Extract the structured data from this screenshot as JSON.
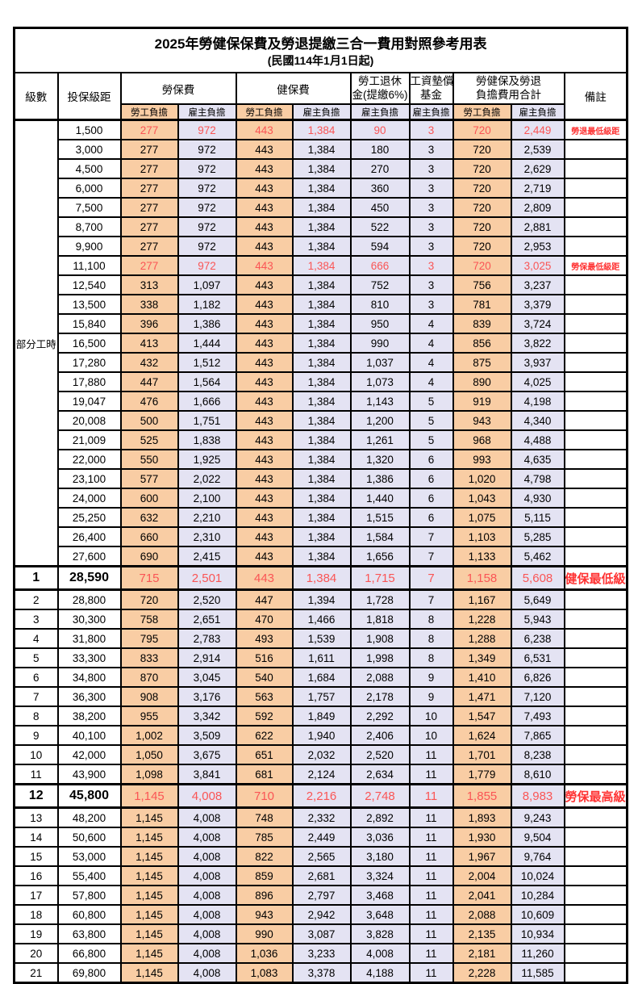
{
  "title": "2025年勞健保保費及勞退提繳三合一費用對照參考用表",
  "subtitle": "(民國114年1月1日起)",
  "header": {
    "level": "級數",
    "bracket": "投保級距",
    "labor_insurance": "勞保費",
    "health_insurance": "健保費",
    "pension_line1": "勞工退休",
    "pension_line2": "金(提繳6%)",
    "wage_fund_line1": "工資墊償",
    "wage_fund_line2": "基金",
    "total_line1": "勞健保及勞退",
    "total_line2": "負擔費用合計",
    "remark": "備註",
    "employee": "勞工負擔",
    "employer": "雇主負擔"
  },
  "part_time_label": "部分工時",
  "colors": {
    "employee_column_fill": "#F9CDA4",
    "employer_column_fill": "#E4E3F3",
    "highlight_number_red": "#FA5555",
    "remark_red": "#FF3333",
    "border_black": "#000000"
  },
  "rows": [
    {
      "level": "",
      "bracket": "1,500",
      "li_emp": "277",
      "li_er": "972",
      "hi_emp": "443",
      "hi_er": "1,384",
      "pen_er": "90",
      "fund_er": "3",
      "tot_emp": "720",
      "tot_er": "2,449",
      "remark": "勞退最低級距",
      "red": true,
      "big": false
    },
    {
      "level": "",
      "bracket": "3,000",
      "li_emp": "277",
      "li_er": "972",
      "hi_emp": "443",
      "hi_er": "1,384",
      "pen_er": "180",
      "fund_er": "3",
      "tot_emp": "720",
      "tot_er": "2,539",
      "remark": "",
      "red": false,
      "big": false
    },
    {
      "level": "",
      "bracket": "4,500",
      "li_emp": "277",
      "li_er": "972",
      "hi_emp": "443",
      "hi_er": "1,384",
      "pen_er": "270",
      "fund_er": "3",
      "tot_emp": "720",
      "tot_er": "2,629",
      "remark": "",
      "red": false,
      "big": false
    },
    {
      "level": "",
      "bracket": "6,000",
      "li_emp": "277",
      "li_er": "972",
      "hi_emp": "443",
      "hi_er": "1,384",
      "pen_er": "360",
      "fund_er": "3",
      "tot_emp": "720",
      "tot_er": "2,719",
      "remark": "",
      "red": false,
      "big": false
    },
    {
      "level": "",
      "bracket": "7,500",
      "li_emp": "277",
      "li_er": "972",
      "hi_emp": "443",
      "hi_er": "1,384",
      "pen_er": "450",
      "fund_er": "3",
      "tot_emp": "720",
      "tot_er": "2,809",
      "remark": "",
      "red": false,
      "big": false
    },
    {
      "level": "",
      "bracket": "8,700",
      "li_emp": "277",
      "li_er": "972",
      "hi_emp": "443",
      "hi_er": "1,384",
      "pen_er": "522",
      "fund_er": "3",
      "tot_emp": "720",
      "tot_er": "2,881",
      "remark": "",
      "red": false,
      "big": false
    },
    {
      "level": "",
      "bracket": "9,900",
      "li_emp": "277",
      "li_er": "972",
      "hi_emp": "443",
      "hi_er": "1,384",
      "pen_er": "594",
      "fund_er": "3",
      "tot_emp": "720",
      "tot_er": "2,953",
      "remark": "",
      "red": false,
      "big": false
    },
    {
      "level": "",
      "bracket": "11,100",
      "li_emp": "277",
      "li_er": "972",
      "hi_emp": "443",
      "hi_er": "1,384",
      "pen_er": "666",
      "fund_er": "3",
      "tot_emp": "720",
      "tot_er": "3,025",
      "remark": "勞保最低級距",
      "red": true,
      "big": false
    },
    {
      "level": "",
      "bracket": "12,540",
      "li_emp": "313",
      "li_er": "1,097",
      "hi_emp": "443",
      "hi_er": "1,384",
      "pen_er": "752",
      "fund_er": "3",
      "tot_emp": "756",
      "tot_er": "3,237",
      "remark": "",
      "red": false,
      "big": false
    },
    {
      "level": "",
      "bracket": "13,500",
      "li_emp": "338",
      "li_er": "1,182",
      "hi_emp": "443",
      "hi_er": "1,384",
      "pen_er": "810",
      "fund_er": "3",
      "tot_emp": "781",
      "tot_er": "3,379",
      "remark": "",
      "red": false,
      "big": false
    },
    {
      "level": "",
      "bracket": "15,840",
      "li_emp": "396",
      "li_er": "1,386",
      "hi_emp": "443",
      "hi_er": "1,384",
      "pen_er": "950",
      "fund_er": "4",
      "tot_emp": "839",
      "tot_er": "3,724",
      "remark": "",
      "red": false,
      "big": false
    },
    {
      "level": "",
      "bracket": "16,500",
      "li_emp": "413",
      "li_er": "1,444",
      "hi_emp": "443",
      "hi_er": "1,384",
      "pen_er": "990",
      "fund_er": "4",
      "tot_emp": "856",
      "tot_er": "3,822",
      "remark": "",
      "red": false,
      "big": false
    },
    {
      "level": "",
      "bracket": "17,280",
      "li_emp": "432",
      "li_er": "1,512",
      "hi_emp": "443",
      "hi_er": "1,384",
      "pen_er": "1,037",
      "fund_er": "4",
      "tot_emp": "875",
      "tot_er": "3,937",
      "remark": "",
      "red": false,
      "big": false
    },
    {
      "level": "",
      "bracket": "17,880",
      "li_emp": "447",
      "li_er": "1,564",
      "hi_emp": "443",
      "hi_er": "1,384",
      "pen_er": "1,073",
      "fund_er": "4",
      "tot_emp": "890",
      "tot_er": "4,025",
      "remark": "",
      "red": false,
      "big": false
    },
    {
      "level": "",
      "bracket": "19,047",
      "li_emp": "476",
      "li_er": "1,666",
      "hi_emp": "443",
      "hi_er": "1,384",
      "pen_er": "1,143",
      "fund_er": "5",
      "tot_emp": "919",
      "tot_er": "4,198",
      "remark": "",
      "red": false,
      "big": false
    },
    {
      "level": "",
      "bracket": "20,008",
      "li_emp": "500",
      "li_er": "1,751",
      "hi_emp": "443",
      "hi_er": "1,384",
      "pen_er": "1,200",
      "fund_er": "5",
      "tot_emp": "943",
      "tot_er": "4,340",
      "remark": "",
      "red": false,
      "big": false
    },
    {
      "level": "",
      "bracket": "21,009",
      "li_emp": "525",
      "li_er": "1,838",
      "hi_emp": "443",
      "hi_er": "1,384",
      "pen_er": "1,261",
      "fund_er": "5",
      "tot_emp": "968",
      "tot_er": "4,488",
      "remark": "",
      "red": false,
      "big": false
    },
    {
      "level": "",
      "bracket": "22,000",
      "li_emp": "550",
      "li_er": "1,925",
      "hi_emp": "443",
      "hi_er": "1,384",
      "pen_er": "1,320",
      "fund_er": "6",
      "tot_emp": "993",
      "tot_er": "4,635",
      "remark": "",
      "red": false,
      "big": false
    },
    {
      "level": "",
      "bracket": "23,100",
      "li_emp": "577",
      "li_er": "2,022",
      "hi_emp": "443",
      "hi_er": "1,384",
      "pen_er": "1,386",
      "fund_er": "6",
      "tot_emp": "1,020",
      "tot_er": "4,798",
      "remark": "",
      "red": false,
      "big": false
    },
    {
      "level": "",
      "bracket": "24,000",
      "li_emp": "600",
      "li_er": "2,100",
      "hi_emp": "443",
      "hi_er": "1,384",
      "pen_er": "1,440",
      "fund_er": "6",
      "tot_emp": "1,043",
      "tot_er": "4,930",
      "remark": "",
      "red": false,
      "big": false
    },
    {
      "level": "",
      "bracket": "25,250",
      "li_emp": "632",
      "li_er": "2,210",
      "hi_emp": "443",
      "hi_er": "1,384",
      "pen_er": "1,515",
      "fund_er": "6",
      "tot_emp": "1,075",
      "tot_er": "5,115",
      "remark": "",
      "red": false,
      "big": false
    },
    {
      "level": "",
      "bracket": "26,400",
      "li_emp": "660",
      "li_er": "2,310",
      "hi_emp": "443",
      "hi_er": "1,384",
      "pen_er": "1,584",
      "fund_er": "7",
      "tot_emp": "1,103",
      "tot_er": "5,285",
      "remark": "",
      "red": false,
      "big": false
    },
    {
      "level": "",
      "bracket": "27,600",
      "li_emp": "690",
      "li_er": "2,415",
      "hi_emp": "443",
      "hi_er": "1,384",
      "pen_er": "1,656",
      "fund_er": "7",
      "tot_emp": "1,133",
      "tot_er": "5,462",
      "remark": "",
      "red": false,
      "big": false
    },
    {
      "level": "1",
      "bracket": "28,590",
      "li_emp": "715",
      "li_er": "2,501",
      "hi_emp": "443",
      "hi_er": "1,384",
      "pen_er": "1,715",
      "fund_er": "7",
      "tot_emp": "1,158",
      "tot_er": "5,608",
      "remark": "健保最低級距",
      "red": true,
      "big": true
    },
    {
      "level": "2",
      "bracket": "28,800",
      "li_emp": "720",
      "li_er": "2,520",
      "hi_emp": "447",
      "hi_er": "1,394",
      "pen_er": "1,728",
      "fund_er": "7",
      "tot_emp": "1,167",
      "tot_er": "5,649",
      "remark": "",
      "red": false,
      "big": false
    },
    {
      "level": "3",
      "bracket": "30,300",
      "li_emp": "758",
      "li_er": "2,651",
      "hi_emp": "470",
      "hi_er": "1,466",
      "pen_er": "1,818",
      "fund_er": "8",
      "tot_emp": "1,228",
      "tot_er": "5,943",
      "remark": "",
      "red": false,
      "big": false
    },
    {
      "level": "4",
      "bracket": "31,800",
      "li_emp": "795",
      "li_er": "2,783",
      "hi_emp": "493",
      "hi_er": "1,539",
      "pen_er": "1,908",
      "fund_er": "8",
      "tot_emp": "1,288",
      "tot_er": "6,238",
      "remark": "",
      "red": false,
      "big": false
    },
    {
      "level": "5",
      "bracket": "33,300",
      "li_emp": "833",
      "li_er": "2,914",
      "hi_emp": "516",
      "hi_er": "1,611",
      "pen_er": "1,998",
      "fund_er": "8",
      "tot_emp": "1,349",
      "tot_er": "6,531",
      "remark": "",
      "red": false,
      "big": false
    },
    {
      "level": "6",
      "bracket": "34,800",
      "li_emp": "870",
      "li_er": "3,045",
      "hi_emp": "540",
      "hi_er": "1,684",
      "pen_er": "2,088",
      "fund_er": "9",
      "tot_emp": "1,410",
      "tot_er": "6,826",
      "remark": "",
      "red": false,
      "big": false
    },
    {
      "level": "7",
      "bracket": "36,300",
      "li_emp": "908",
      "li_er": "3,176",
      "hi_emp": "563",
      "hi_er": "1,757",
      "pen_er": "2,178",
      "fund_er": "9",
      "tot_emp": "1,471",
      "tot_er": "7,120",
      "remark": "",
      "red": false,
      "big": false
    },
    {
      "level": "8",
      "bracket": "38,200",
      "li_emp": "955",
      "li_er": "3,342",
      "hi_emp": "592",
      "hi_er": "1,849",
      "pen_er": "2,292",
      "fund_er": "10",
      "tot_emp": "1,547",
      "tot_er": "7,493",
      "remark": "",
      "red": false,
      "big": false
    },
    {
      "level": "9",
      "bracket": "40,100",
      "li_emp": "1,002",
      "li_er": "3,509",
      "hi_emp": "622",
      "hi_er": "1,940",
      "pen_er": "2,406",
      "fund_er": "10",
      "tot_emp": "1,624",
      "tot_er": "7,865",
      "remark": "",
      "red": false,
      "big": false
    },
    {
      "level": "10",
      "bracket": "42,000",
      "li_emp": "1,050",
      "li_er": "3,675",
      "hi_emp": "651",
      "hi_er": "2,032",
      "pen_er": "2,520",
      "fund_er": "11",
      "tot_emp": "1,701",
      "tot_er": "8,238",
      "remark": "",
      "red": false,
      "big": false
    },
    {
      "level": "11",
      "bracket": "43,900",
      "li_emp": "1,098",
      "li_er": "3,841",
      "hi_emp": "681",
      "hi_er": "2,124",
      "pen_er": "2,634",
      "fund_er": "11",
      "tot_emp": "1,779",
      "tot_er": "8,610",
      "remark": "",
      "red": false,
      "big": false
    },
    {
      "level": "12",
      "bracket": "45,800",
      "li_emp": "1,145",
      "li_er": "4,008",
      "hi_emp": "710",
      "hi_er": "2,216",
      "pen_er": "2,748",
      "fund_er": "11",
      "tot_emp": "1,855",
      "tot_er": "8,983",
      "remark": "勞保最高級距",
      "red": true,
      "big": true
    },
    {
      "level": "13",
      "bracket": "48,200",
      "li_emp": "1,145",
      "li_er": "4,008",
      "hi_emp": "748",
      "hi_er": "2,332",
      "pen_er": "2,892",
      "fund_er": "11",
      "tot_emp": "1,893",
      "tot_er": "9,243",
      "remark": "",
      "red": false,
      "big": false
    },
    {
      "level": "14",
      "bracket": "50,600",
      "li_emp": "1,145",
      "li_er": "4,008",
      "hi_emp": "785",
      "hi_er": "2,449",
      "pen_er": "3,036",
      "fund_er": "11",
      "tot_emp": "1,930",
      "tot_er": "9,504",
      "remark": "",
      "red": false,
      "big": false
    },
    {
      "level": "15",
      "bracket": "53,000",
      "li_emp": "1,145",
      "li_er": "4,008",
      "hi_emp": "822",
      "hi_er": "2,565",
      "pen_er": "3,180",
      "fund_er": "11",
      "tot_emp": "1,967",
      "tot_er": "9,764",
      "remark": "",
      "red": false,
      "big": false
    },
    {
      "level": "16",
      "bracket": "55,400",
      "li_emp": "1,145",
      "li_er": "4,008",
      "hi_emp": "859",
      "hi_er": "2,681",
      "pen_er": "3,324",
      "fund_er": "11",
      "tot_emp": "2,004",
      "tot_er": "10,024",
      "remark": "",
      "red": false,
      "big": false
    },
    {
      "level": "17",
      "bracket": "57,800",
      "li_emp": "1,145",
      "li_er": "4,008",
      "hi_emp": "896",
      "hi_er": "2,797",
      "pen_er": "3,468",
      "fund_er": "11",
      "tot_emp": "2,041",
      "tot_er": "10,284",
      "remark": "",
      "red": false,
      "big": false
    },
    {
      "level": "18",
      "bracket": "60,800",
      "li_emp": "1,145",
      "li_er": "4,008",
      "hi_emp": "943",
      "hi_er": "2,942",
      "pen_er": "3,648",
      "fund_er": "11",
      "tot_emp": "2,088",
      "tot_er": "10,609",
      "remark": "",
      "red": false,
      "big": false
    },
    {
      "level": "19",
      "bracket": "63,800",
      "li_emp": "1,145",
      "li_er": "4,008",
      "hi_emp": "990",
      "hi_er": "3,087",
      "pen_er": "3,828",
      "fund_er": "11",
      "tot_emp": "2,135",
      "tot_er": "10,934",
      "remark": "",
      "red": false,
      "big": false
    },
    {
      "level": "20",
      "bracket": "66,800",
      "li_emp": "1,145",
      "li_er": "4,008",
      "hi_emp": "1,036",
      "hi_er": "3,233",
      "pen_er": "4,008",
      "fund_er": "11",
      "tot_emp": "2,181",
      "tot_er": "11,260",
      "remark": "",
      "red": false,
      "big": false
    },
    {
      "level": "21",
      "bracket": "69,800",
      "li_emp": "1,145",
      "li_er": "4,008",
      "hi_emp": "1,083",
      "hi_er": "3,378",
      "pen_er": "4,188",
      "fund_er": "11",
      "tot_emp": "2,228",
      "tot_er": "11,585",
      "remark": "",
      "red": false,
      "big": false
    }
  ]
}
